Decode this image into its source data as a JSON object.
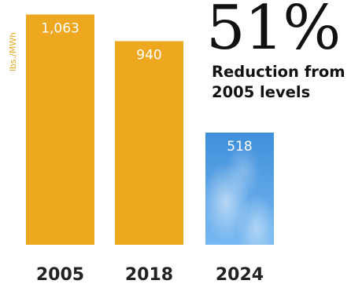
{
  "chart_data": {
    "type": "bar",
    "categories": [
      "2005",
      "2018",
      "2024"
    ],
    "values": [
      1063,
      940,
      518
    ],
    "value_labels": [
      "1,063",
      "940",
      "518"
    ],
    "ylabel": "lbs./MWh",
    "ylim": [
      0,
      1130
    ],
    "grid": false,
    "bar_colors": [
      "#eda820",
      "#eda820",
      "#4e9be0"
    ],
    "label_color": "#ffffff",
    "category_color": "#222222"
  },
  "callout": {
    "percent": "51%",
    "caption": "Reduction from 2005 levels"
  }
}
